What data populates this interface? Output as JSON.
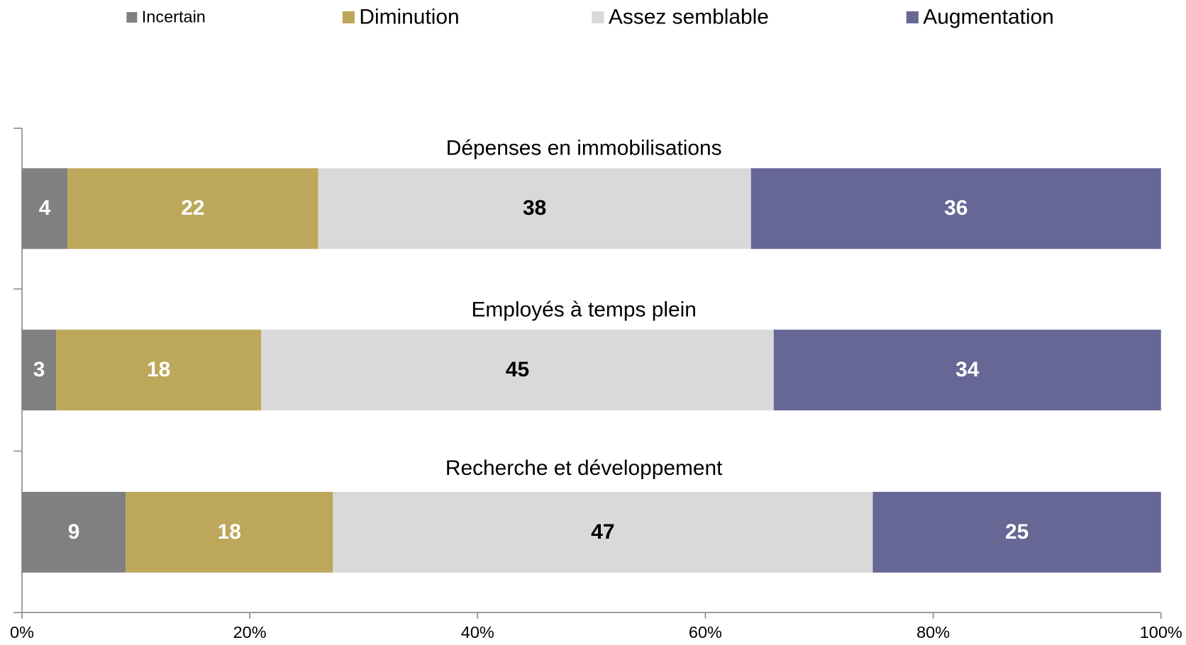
{
  "chart_data": {
    "type": "stacked_barh",
    "categories": [
      "Dépenses en immobilisations",
      "Employés à temps plein",
      "Recherche et développement"
    ],
    "series": [
      {
        "name": "Incertain",
        "color": "#808080",
        "label_color": "#ffffff",
        "values": [
          4,
          3,
          9.1
        ],
        "value_labels": [
          "4",
          "3",
          "9"
        ]
      },
      {
        "name": "Diminution",
        "color": "#bda75a",
        "label_color": "#ffffff",
        "values": [
          22,
          18,
          18.2
        ],
        "value_labels": [
          "22",
          "18",
          "18"
        ]
      },
      {
        "name": "Assez semblable",
        "color": "#d9d9d9",
        "label_color": "#000000",
        "values": [
          38,
          45,
          47.4
        ],
        "value_labels": [
          "38",
          "45",
          "47"
        ]
      },
      {
        "name": "Augmentation",
        "color": "#676796",
        "label_color": "#ffffff",
        "values": [
          36,
          34,
          25.3
        ],
        "value_labels": [
          "36",
          "34",
          "25"
        ]
      }
    ],
    "xlim": [
      0,
      100
    ],
    "xticks": [
      {
        "value": 0,
        "label": "0%"
      },
      {
        "value": 20,
        "label": "20%"
      },
      {
        "value": 40,
        "label": "40%"
      },
      {
        "value": 60,
        "label": "60%"
      },
      {
        "value": 80,
        "label": "80%"
      },
      {
        "value": 100,
        "label": "100%"
      }
    ],
    "legend": "top"
  }
}
